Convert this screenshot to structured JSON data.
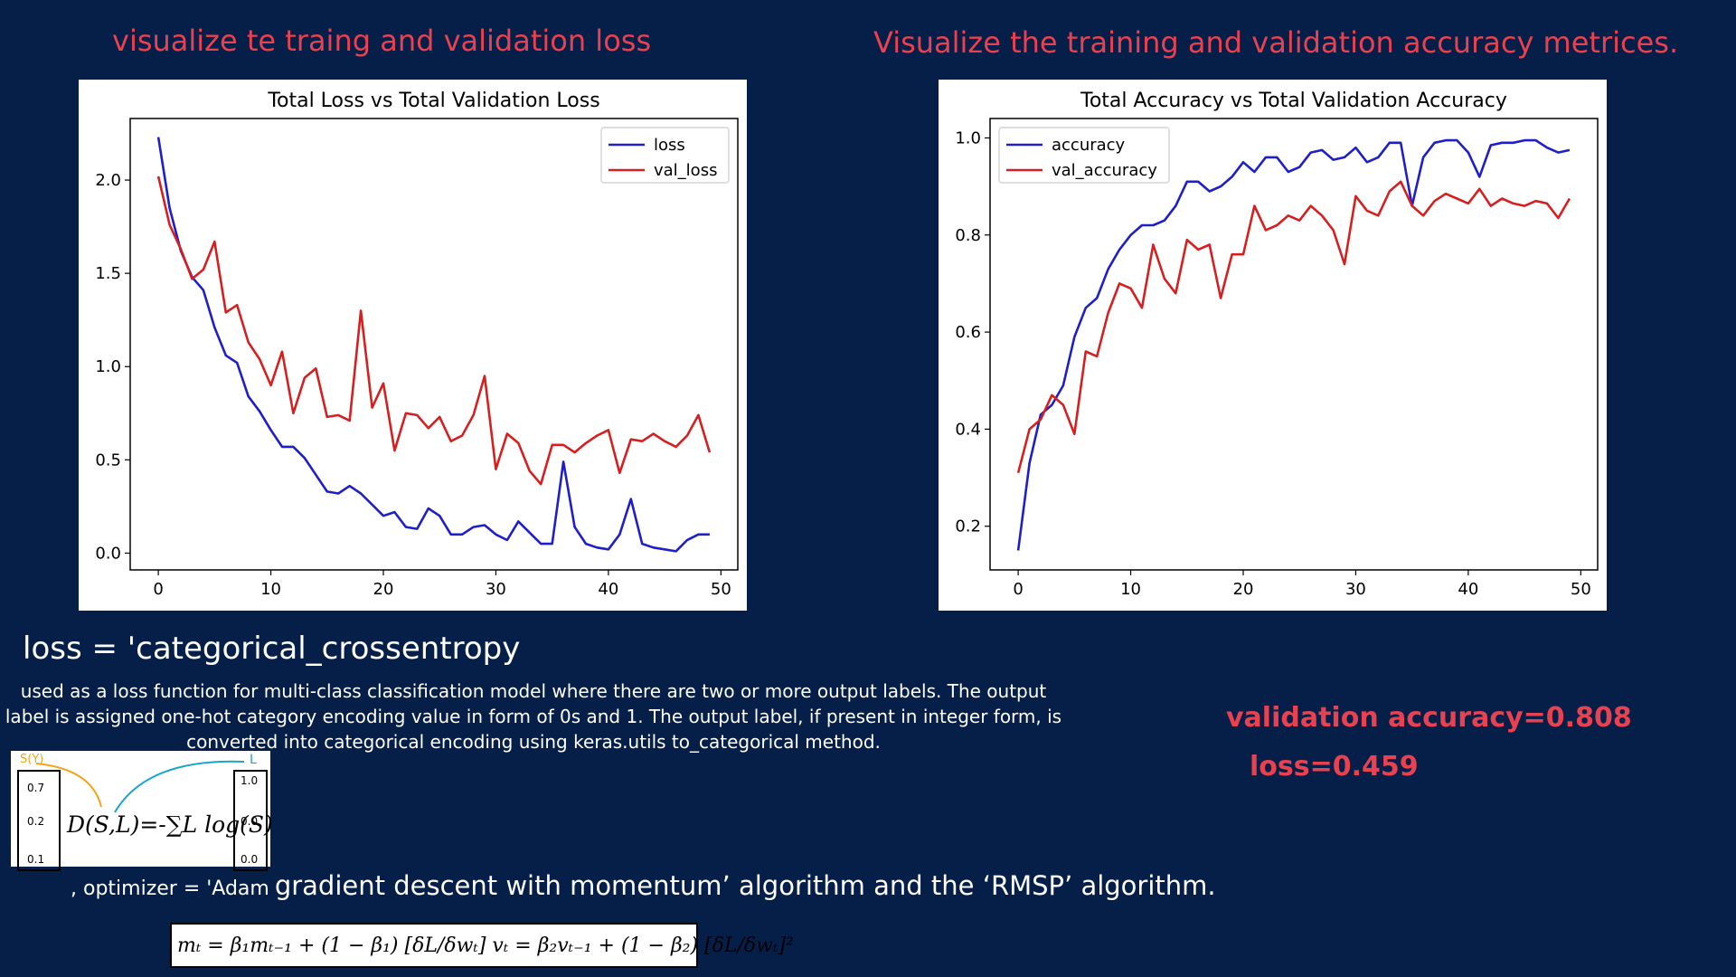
{
  "headings": {
    "loss": "visualize te  traing and validation loss",
    "accuracy": "Visualize the training and validation accuracy metrices."
  },
  "loss_section": {
    "title": "loss = 'categorical_crossentropy",
    "description": "used as a loss function for multi-class classification model where there are two or more output labels. The output label is assigned one-hot category encoding value in form of 0s and 1. The output label, if present in integer form, is converted into categorical encoding using keras.utils to_categorical method."
  },
  "formula_image": {
    "s_label": "S(Y)",
    "l_label": "L",
    "left_values": [
      "0.7",
      "0.2",
      "0.1"
    ],
    "right_values": [
      "1.0",
      "0.0",
      "0.0"
    ],
    "equation": "D(S,L)=-∑L log(S)",
    "accent_colors": [
      "#f2a31b",
      "#1aa6c9"
    ]
  },
  "optimizer": {
    "prefix": ", optimizer = 'Adam",
    "text": "gradient descent with momentum’ algorithm and the ‘RMSP’ algorithm.",
    "formula": "mₜ = β₁mₜ₋₁ + (1 − β₁) [δL/δwₜ]   vₜ = β₂vₜ₋₁ + (1 − β₂) [δL/δwₜ]²"
  },
  "metrics": {
    "validation_accuracy": "validation accuracy=0.808",
    "loss": "loss=0.459"
  },
  "colors": {
    "background": "#061f49",
    "accent_red": "#e8414f",
    "series_blue": "#1f1fc8",
    "series_red": "#d42020"
  },
  "chart_data": [
    {
      "type": "line",
      "title": "Total Loss vs Total Validation Loss",
      "xlim": [
        -2.5,
        51.5
      ],
      "ylim": [
        -0.09,
        2.33
      ],
      "xticks": [
        0,
        10,
        20,
        30,
        40,
        50
      ],
      "yticks": [
        0.0,
        0.5,
        1.0,
        1.5,
        2.0
      ],
      "ytick_labels": [
        "0.0",
        "0.5",
        "1.0",
        "1.5",
        "2.0"
      ],
      "legend_position": "upper right",
      "grid": false,
      "x": [
        0,
        1,
        2,
        3,
        4,
        5,
        6,
        7,
        8,
        9,
        10,
        11,
        12,
        13,
        14,
        15,
        16,
        17,
        18,
        19,
        20,
        21,
        22,
        23,
        24,
        25,
        26,
        27,
        28,
        29,
        30,
        31,
        32,
        33,
        34,
        35,
        36,
        37,
        38,
        39,
        40,
        41,
        42,
        43,
        44,
        45,
        46,
        47,
        48,
        49
      ],
      "series": [
        {
          "name": "loss",
          "color": "#1f1fc8",
          "values": [
            2.23,
            1.85,
            1.62,
            1.48,
            1.41,
            1.21,
            1.06,
            1.02,
            0.84,
            0.76,
            0.66,
            0.57,
            0.57,
            0.51,
            0.42,
            0.33,
            0.32,
            0.36,
            0.32,
            0.26,
            0.2,
            0.22,
            0.14,
            0.13,
            0.24,
            0.2,
            0.1,
            0.1,
            0.14,
            0.15,
            0.1,
            0.07,
            0.17,
            0.11,
            0.05,
            0.05,
            0.49,
            0.14,
            0.05,
            0.03,
            0.02,
            0.1,
            0.29,
            0.05,
            0.03,
            0.02,
            0.01,
            0.07,
            0.1,
            0.1
          ]
        },
        {
          "name": "val_loss",
          "color": "#d42020",
          "values": [
            2.02,
            1.76,
            1.63,
            1.47,
            1.52,
            1.67,
            1.29,
            1.33,
            1.13,
            1.04,
            0.9,
            1.08,
            0.75,
            0.94,
            0.99,
            0.73,
            0.74,
            0.71,
            1.3,
            0.78,
            0.91,
            0.55,
            0.75,
            0.74,
            0.67,
            0.73,
            0.6,
            0.63,
            0.74,
            0.95,
            0.45,
            0.64,
            0.59,
            0.44,
            0.37,
            0.58,
            0.58,
            0.54,
            0.59,
            0.63,
            0.66,
            0.43,
            0.61,
            0.6,
            0.64,
            0.6,
            0.57,
            0.63,
            0.74,
            0.54
          ]
        }
      ]
    },
    {
      "type": "line",
      "title": "Total Accuracy vs Total Validation Accuracy",
      "xlim": [
        -2.5,
        51.5
      ],
      "ylim": [
        0.11,
        1.04
      ],
      "xticks": [
        0,
        10,
        20,
        30,
        40,
        50
      ],
      "yticks": [
        0.2,
        0.4,
        0.6,
        0.8,
        1.0
      ],
      "ytick_labels": [
        "0.2",
        "0.4",
        "0.6",
        "0.8",
        "1.0"
      ],
      "legend_position": "upper left",
      "grid": false,
      "x": [
        0,
        1,
        2,
        3,
        4,
        5,
        6,
        7,
        8,
        9,
        10,
        11,
        12,
        13,
        14,
        15,
        16,
        17,
        18,
        19,
        20,
        21,
        22,
        23,
        24,
        25,
        26,
        27,
        28,
        29,
        30,
        31,
        32,
        33,
        34,
        35,
        36,
        37,
        38,
        39,
        40,
        41,
        42,
        43,
        44,
        45,
        46,
        47,
        48,
        49
      ],
      "series": [
        {
          "name": "accuracy",
          "color": "#1f1fc8",
          "values": [
            0.15,
            0.33,
            0.43,
            0.45,
            0.49,
            0.59,
            0.65,
            0.67,
            0.73,
            0.77,
            0.8,
            0.82,
            0.82,
            0.83,
            0.86,
            0.91,
            0.91,
            0.89,
            0.9,
            0.92,
            0.95,
            0.93,
            0.96,
            0.96,
            0.93,
            0.94,
            0.97,
            0.975,
            0.955,
            0.96,
            0.98,
            0.95,
            0.96,
            0.99,
            0.99,
            0.86,
            0.96,
            0.99,
            0.995,
            0.995,
            0.97,
            0.92,
            0.985,
            0.99,
            0.99,
            0.995,
            0.995,
            0.98,
            0.97,
            0.975
          ]
        },
        {
          "name": "val_accuracy",
          "color": "#d42020",
          "values": [
            0.31,
            0.4,
            0.42,
            0.47,
            0.45,
            0.39,
            0.56,
            0.55,
            0.64,
            0.7,
            0.69,
            0.65,
            0.78,
            0.71,
            0.68,
            0.79,
            0.77,
            0.78,
            0.67,
            0.76,
            0.76,
            0.86,
            0.81,
            0.82,
            0.84,
            0.83,
            0.86,
            0.84,
            0.81,
            0.74,
            0.88,
            0.85,
            0.84,
            0.89,
            0.91,
            0.86,
            0.84,
            0.87,
            0.885,
            0.875,
            0.865,
            0.895,
            0.86,
            0.875,
            0.865,
            0.86,
            0.87,
            0.865,
            0.835,
            0.875
          ]
        }
      ]
    }
  ]
}
